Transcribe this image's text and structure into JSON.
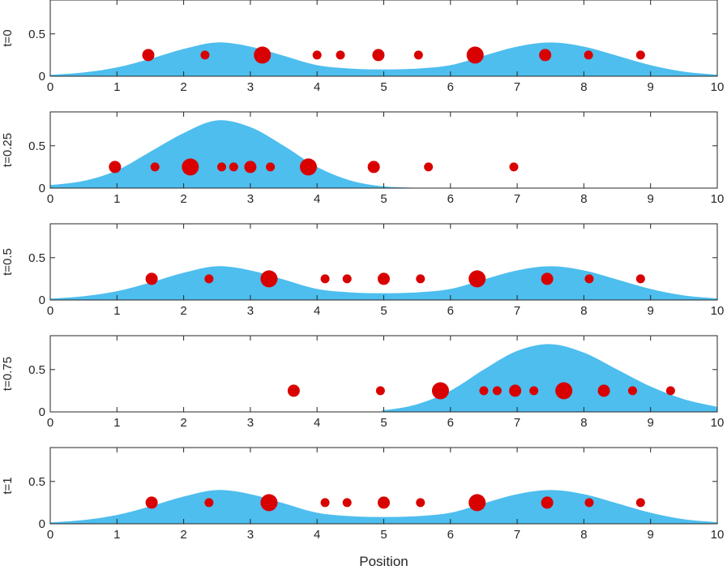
{
  "chart_data": {
    "type": "area",
    "xlabel": "Position",
    "xlim": [
      0,
      10
    ],
    "ylim": [
      0,
      0.9
    ],
    "xticks": [
      "0",
      "1",
      "2",
      "3",
      "4",
      "5",
      "6",
      "7",
      "8",
      "9",
      "10"
    ],
    "yticks": [
      "0",
      "0.5"
    ],
    "colors": {
      "area": "#4DBEEE",
      "marker": "#D90000",
      "axis": "#262626"
    },
    "panels": [
      {
        "ylabel": "t=0",
        "curve": [
          [
            0,
            0.016
          ],
          [
            0.5,
            0.044
          ],
          [
            1,
            0.104
          ],
          [
            1.5,
            0.206
          ],
          [
            2,
            0.322
          ],
          [
            2.5,
            0.399
          ],
          [
            3,
            0.35
          ],
          [
            3.5,
            0.242
          ],
          [
            4,
            0.13
          ],
          [
            4.5,
            0.09
          ],
          [
            5,
            0.08
          ],
          [
            5.5,
            0.09
          ],
          [
            6,
            0.13
          ],
          [
            6.5,
            0.242
          ],
          [
            7,
            0.35
          ],
          [
            7.5,
            0.399
          ],
          [
            8,
            0.35
          ],
          [
            8.5,
            0.242
          ],
          [
            9,
            0.13
          ],
          [
            9.5,
            0.054
          ],
          [
            10,
            0.018
          ]
        ],
        "particles": [
          {
            "x": 1.47,
            "size": "medium"
          },
          {
            "x": 2.32,
            "size": "small"
          },
          {
            "x": 3.18,
            "size": "large"
          },
          {
            "x": 4.0,
            "size": "small"
          },
          {
            "x": 4.35,
            "size": "small"
          },
          {
            "x": 4.92,
            "size": "medium"
          },
          {
            "x": 5.52,
            "size": "small"
          },
          {
            "x": 6.37,
            "size": "large"
          },
          {
            "x": 7.42,
            "size": "medium"
          },
          {
            "x": 8.07,
            "size": "small"
          },
          {
            "x": 8.85,
            "size": "small"
          }
        ]
      },
      {
        "ylabel": "t=0.25",
        "curve": [
          [
            0,
            0.035
          ],
          [
            0.5,
            0.085
          ],
          [
            1,
            0.21
          ],
          [
            1.5,
            0.43
          ],
          [
            2,
            0.65
          ],
          [
            2.5,
            0.8
          ],
          [
            3,
            0.72
          ],
          [
            3.5,
            0.5
          ],
          [
            4,
            0.25
          ],
          [
            4.5,
            0.09
          ],
          [
            5,
            0.02
          ],
          [
            5.5,
            0.004
          ],
          [
            6,
            0
          ],
          [
            10,
            0
          ]
        ],
        "particles": [
          {
            "x": 0.97,
            "size": "medium"
          },
          {
            "x": 1.57,
            "size": "small"
          },
          {
            "x": 2.1,
            "size": "large"
          },
          {
            "x": 2.57,
            "size": "small"
          },
          {
            "x": 2.75,
            "size": "small"
          },
          {
            "x": 3.0,
            "size": "medium"
          },
          {
            "x": 3.3,
            "size": "small"
          },
          {
            "x": 3.87,
            "size": "large"
          },
          {
            "x": 4.85,
            "size": "medium"
          },
          {
            "x": 5.67,
            "size": "small"
          },
          {
            "x": 6.95,
            "size": "small"
          }
        ]
      },
      {
        "ylabel": "t=0.5",
        "curve": [
          [
            0,
            0.016
          ],
          [
            0.5,
            0.044
          ],
          [
            1,
            0.104
          ],
          [
            1.5,
            0.206
          ],
          [
            2,
            0.322
          ],
          [
            2.5,
            0.399
          ],
          [
            3,
            0.35
          ],
          [
            3.5,
            0.242
          ],
          [
            4,
            0.13
          ],
          [
            4.5,
            0.09
          ],
          [
            5,
            0.08
          ],
          [
            5.5,
            0.09
          ],
          [
            6,
            0.13
          ],
          [
            6.5,
            0.242
          ],
          [
            7,
            0.35
          ],
          [
            7.5,
            0.399
          ],
          [
            8,
            0.35
          ],
          [
            8.5,
            0.242
          ],
          [
            9,
            0.13
          ],
          [
            9.5,
            0.054
          ],
          [
            10,
            0.018
          ]
        ],
        "particles": [
          {
            "x": 1.52,
            "size": "medium"
          },
          {
            "x": 2.38,
            "size": "small"
          },
          {
            "x": 3.28,
            "size": "large"
          },
          {
            "x": 4.12,
            "size": "small"
          },
          {
            "x": 4.45,
            "size": "small"
          },
          {
            "x": 5.0,
            "size": "medium"
          },
          {
            "x": 5.55,
            "size": "small"
          },
          {
            "x": 6.4,
            "size": "large"
          },
          {
            "x": 7.45,
            "size": "medium"
          },
          {
            "x": 8.08,
            "size": "small"
          },
          {
            "x": 8.85,
            "size": "small"
          }
        ]
      },
      {
        "ylabel": "t=0.75",
        "curve": [
          [
            0,
            0
          ],
          [
            4.5,
            0
          ],
          [
            5,
            0.02
          ],
          [
            5.5,
            0.09
          ],
          [
            6,
            0.25
          ],
          [
            6.5,
            0.5
          ],
          [
            7,
            0.72
          ],
          [
            7.5,
            0.8
          ],
          [
            8,
            0.7
          ],
          [
            8.5,
            0.5
          ],
          [
            9,
            0.3
          ],
          [
            9.5,
            0.15
          ],
          [
            10,
            0.06
          ]
        ],
        "particles": [
          {
            "x": 3.65,
            "size": "medium"
          },
          {
            "x": 4.95,
            "size": "small"
          },
          {
            "x": 5.85,
            "size": "large"
          },
          {
            "x": 6.5,
            "size": "small"
          },
          {
            "x": 6.7,
            "size": "small"
          },
          {
            "x": 6.97,
            "size": "medium"
          },
          {
            "x": 7.25,
            "size": "small"
          },
          {
            "x": 7.7,
            "size": "large"
          },
          {
            "x": 8.3,
            "size": "medium"
          },
          {
            "x": 8.73,
            "size": "small"
          },
          {
            "x": 9.3,
            "size": "small"
          }
        ]
      },
      {
        "ylabel": "t=1",
        "curve": [
          [
            0,
            0.016
          ],
          [
            0.5,
            0.044
          ],
          [
            1,
            0.104
          ],
          [
            1.5,
            0.206
          ],
          [
            2,
            0.322
          ],
          [
            2.5,
            0.399
          ],
          [
            3,
            0.35
          ],
          [
            3.5,
            0.242
          ],
          [
            4,
            0.13
          ],
          [
            4.5,
            0.09
          ],
          [
            5,
            0.08
          ],
          [
            5.5,
            0.09
          ],
          [
            6,
            0.13
          ],
          [
            6.5,
            0.242
          ],
          [
            7,
            0.35
          ],
          [
            7.5,
            0.399
          ],
          [
            8,
            0.35
          ],
          [
            8.5,
            0.242
          ],
          [
            9,
            0.13
          ],
          [
            9.5,
            0.054
          ],
          [
            10,
            0.018
          ]
        ],
        "particles": [
          {
            "x": 1.52,
            "size": "medium"
          },
          {
            "x": 2.38,
            "size": "small"
          },
          {
            "x": 3.28,
            "size": "large"
          },
          {
            "x": 4.12,
            "size": "small"
          },
          {
            "x": 4.45,
            "size": "small"
          },
          {
            "x": 5.0,
            "size": "medium"
          },
          {
            "x": 5.55,
            "size": "small"
          },
          {
            "x": 6.4,
            "size": "large"
          },
          {
            "x": 7.45,
            "size": "medium"
          },
          {
            "x": 8.08,
            "size": "small"
          },
          {
            "x": 8.85,
            "size": "small"
          }
        ]
      }
    ],
    "marker_y": 0.25
  }
}
